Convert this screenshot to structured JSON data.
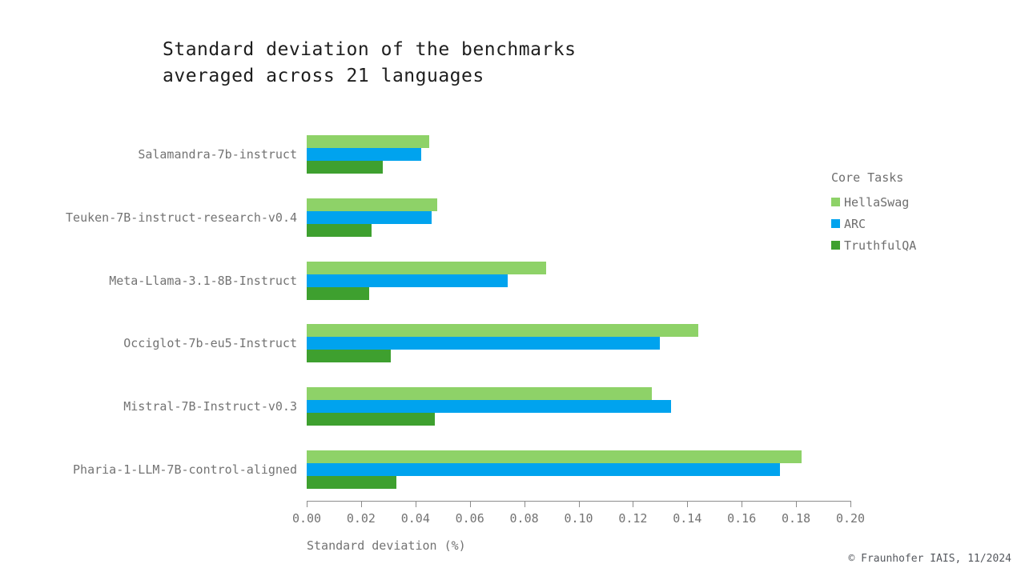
{
  "footer": "© Fraunhofer IAIS, 11/2024",
  "chart_data": {
    "type": "bar",
    "orientation": "horizontal",
    "title": "Standard deviation of the benchmarks averaged across 21 languages",
    "xlabel": "Standard deviation (%)",
    "xlim": [
      0,
      0.2
    ],
    "xticks": [
      "0.00",
      "0.02",
      "0.04",
      "0.06",
      "0.08",
      "0.10",
      "0.12",
      "0.14",
      "0.16",
      "0.18",
      "0.20"
    ],
    "grid": false,
    "legend_title": "Core Tasks",
    "legend_position": "right",
    "background": "#ffffff",
    "categories": [
      "Salamandra-7b-instruct",
      "Teuken-7B-instruct-research-v0.4",
      "Meta-Llama-3.1-8B-Instruct",
      "Occiglot-7b-eu5-Instruct",
      "Mistral-7B-Instruct-v0.3",
      "Pharia-1-LLM-7B-control-aligned"
    ],
    "series": [
      {
        "name": "HellaSwag",
        "color": "#8ED268",
        "values": [
          0.045,
          0.048,
          0.088,
          0.144,
          0.127,
          0.182
        ]
      },
      {
        "name": "ARC",
        "color": "#00A3EE",
        "values": [
          0.042,
          0.046,
          0.074,
          0.13,
          0.134,
          0.174
        ]
      },
      {
        "name": "TruthfulQA",
        "color": "#3EA02F",
        "values": [
          0.028,
          0.024,
          0.023,
          0.031,
          0.047,
          0.033
        ]
      }
    ]
  }
}
